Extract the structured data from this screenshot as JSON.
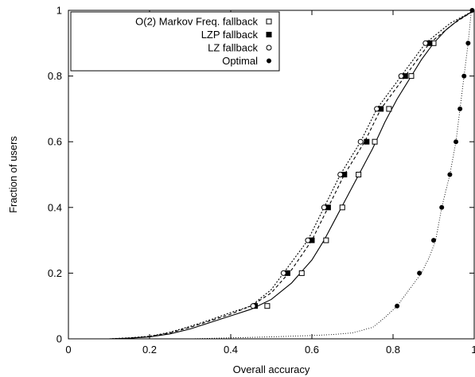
{
  "chart_data": {
    "type": "line",
    "xlabel": "Overall accuracy",
    "ylabel": "Fraction of users",
    "xlim": [
      0,
      1
    ],
    "ylim": [
      0,
      1
    ],
    "xticks": [
      "0",
      "0.2",
      "0.4",
      "0.6",
      "0.8",
      "1"
    ],
    "yticks": [
      "0",
      "0.2",
      "0.4",
      "0.6",
      "0.8",
      "1"
    ],
    "xtick_values": [
      0,
      0.2,
      0.4,
      0.6,
      0.8,
      1
    ],
    "ytick_values": [
      0,
      0.2,
      0.4,
      0.6,
      0.8,
      1
    ],
    "legend_position": "top-left",
    "series": [
      {
        "name": "O(2) Markov Freq. fallback",
        "line_style": "solid",
        "marker": "hollow-square",
        "line": [
          [
            0.1,
            0
          ],
          [
            0.15,
            0.002
          ],
          [
            0.2,
            0.006
          ],
          [
            0.25,
            0.015
          ],
          [
            0.3,
            0.03
          ],
          [
            0.35,
            0.05
          ],
          [
            0.4,
            0.07
          ],
          [
            0.45,
            0.09
          ],
          [
            0.5,
            0.12
          ],
          [
            0.55,
            0.17
          ],
          [
            0.6,
            0.24
          ],
          [
            0.63,
            0.3
          ],
          [
            0.66,
            0.37
          ],
          [
            0.69,
            0.44
          ],
          [
            0.72,
            0.51
          ],
          [
            0.75,
            0.58
          ],
          [
            0.78,
            0.66
          ],
          [
            0.81,
            0.73
          ],
          [
            0.84,
            0.79
          ],
          [
            0.87,
            0.85
          ],
          [
            0.9,
            0.9
          ],
          [
            0.93,
            0.94
          ],
          [
            0.96,
            0.97
          ],
          [
            1.0,
            1.0
          ]
        ],
        "markers": [
          [
            0.49,
            0.1
          ],
          [
            0.575,
            0.2
          ],
          [
            0.635,
            0.3
          ],
          [
            0.675,
            0.4
          ],
          [
            0.715,
            0.5
          ],
          [
            0.755,
            0.6
          ],
          [
            0.79,
            0.7
          ],
          [
            0.845,
            0.8
          ],
          [
            0.9,
            0.9
          ]
        ]
      },
      {
        "name": "LZP fallback",
        "line_style": "dashed",
        "marker": "filled-square",
        "line": [
          [
            0.1,
            0
          ],
          [
            0.15,
            0.002
          ],
          [
            0.2,
            0.007
          ],
          [
            0.25,
            0.018
          ],
          [
            0.3,
            0.035
          ],
          [
            0.35,
            0.055
          ],
          [
            0.4,
            0.075
          ],
          [
            0.45,
            0.1
          ],
          [
            0.5,
            0.14
          ],
          [
            0.55,
            0.21
          ],
          [
            0.6,
            0.3
          ],
          [
            0.64,
            0.4
          ],
          [
            0.68,
            0.5
          ],
          [
            0.73,
            0.6
          ],
          [
            0.77,
            0.7
          ],
          [
            0.83,
            0.8
          ],
          [
            0.89,
            0.9
          ],
          [
            0.95,
            0.96
          ],
          [
            1.0,
            1.0
          ]
        ],
        "markers": [
          [
            0.46,
            0.1
          ],
          [
            0.54,
            0.2
          ],
          [
            0.6,
            0.3
          ],
          [
            0.64,
            0.4
          ],
          [
            0.68,
            0.5
          ],
          [
            0.735,
            0.6
          ],
          [
            0.77,
            0.7
          ],
          [
            0.83,
            0.8
          ],
          [
            0.89,
            0.9
          ]
        ]
      },
      {
        "name": "LZ fallback",
        "line_style": "dotted",
        "marker": "hollow-circle",
        "line": [
          [
            0.1,
            0
          ],
          [
            0.15,
            0.003
          ],
          [
            0.2,
            0.008
          ],
          [
            0.25,
            0.02
          ],
          [
            0.3,
            0.038
          ],
          [
            0.35,
            0.058
          ],
          [
            0.4,
            0.08
          ],
          [
            0.45,
            0.1
          ],
          [
            0.5,
            0.15
          ],
          [
            0.53,
            0.2
          ],
          [
            0.59,
            0.3
          ],
          [
            0.63,
            0.4
          ],
          [
            0.67,
            0.5
          ],
          [
            0.72,
            0.6
          ],
          [
            0.76,
            0.7
          ],
          [
            0.82,
            0.8
          ],
          [
            0.88,
            0.9
          ],
          [
            0.94,
            0.96
          ],
          [
            1.0,
            1.0
          ]
        ],
        "markers": [
          [
            0.455,
            0.1
          ],
          [
            0.53,
            0.2
          ],
          [
            0.59,
            0.3
          ],
          [
            0.63,
            0.4
          ],
          [
            0.67,
            0.5
          ],
          [
            0.72,
            0.6
          ],
          [
            0.76,
            0.7
          ],
          [
            0.82,
            0.8
          ],
          [
            0.88,
            0.9
          ]
        ]
      },
      {
        "name": "Optimal",
        "line_style": "fine-dotted",
        "marker": "filled-circle",
        "line": [
          [
            0.3,
            0
          ],
          [
            0.4,
            0.003
          ],
          [
            0.5,
            0.006
          ],
          [
            0.6,
            0.01
          ],
          [
            0.65,
            0.013
          ],
          [
            0.7,
            0.018
          ],
          [
            0.75,
            0.035
          ],
          [
            0.78,
            0.065
          ],
          [
            0.81,
            0.1
          ],
          [
            0.84,
            0.15
          ],
          [
            0.87,
            0.2
          ],
          [
            0.89,
            0.25
          ],
          [
            0.905,
            0.3
          ],
          [
            0.92,
            0.4
          ],
          [
            0.94,
            0.5
          ],
          [
            0.955,
            0.6
          ],
          [
            0.965,
            0.7
          ],
          [
            0.975,
            0.8
          ],
          [
            0.985,
            0.9
          ],
          [
            0.993,
            1.0
          ]
        ],
        "markers": [
          [
            0.81,
            0.1
          ],
          [
            0.865,
            0.2
          ],
          [
            0.9,
            0.3
          ],
          [
            0.92,
            0.4
          ],
          [
            0.94,
            0.5
          ],
          [
            0.955,
            0.6
          ],
          [
            0.965,
            0.7
          ],
          [
            0.975,
            0.8
          ],
          [
            0.985,
            0.9
          ],
          [
            0.995,
            1.0
          ]
        ]
      }
    ]
  }
}
